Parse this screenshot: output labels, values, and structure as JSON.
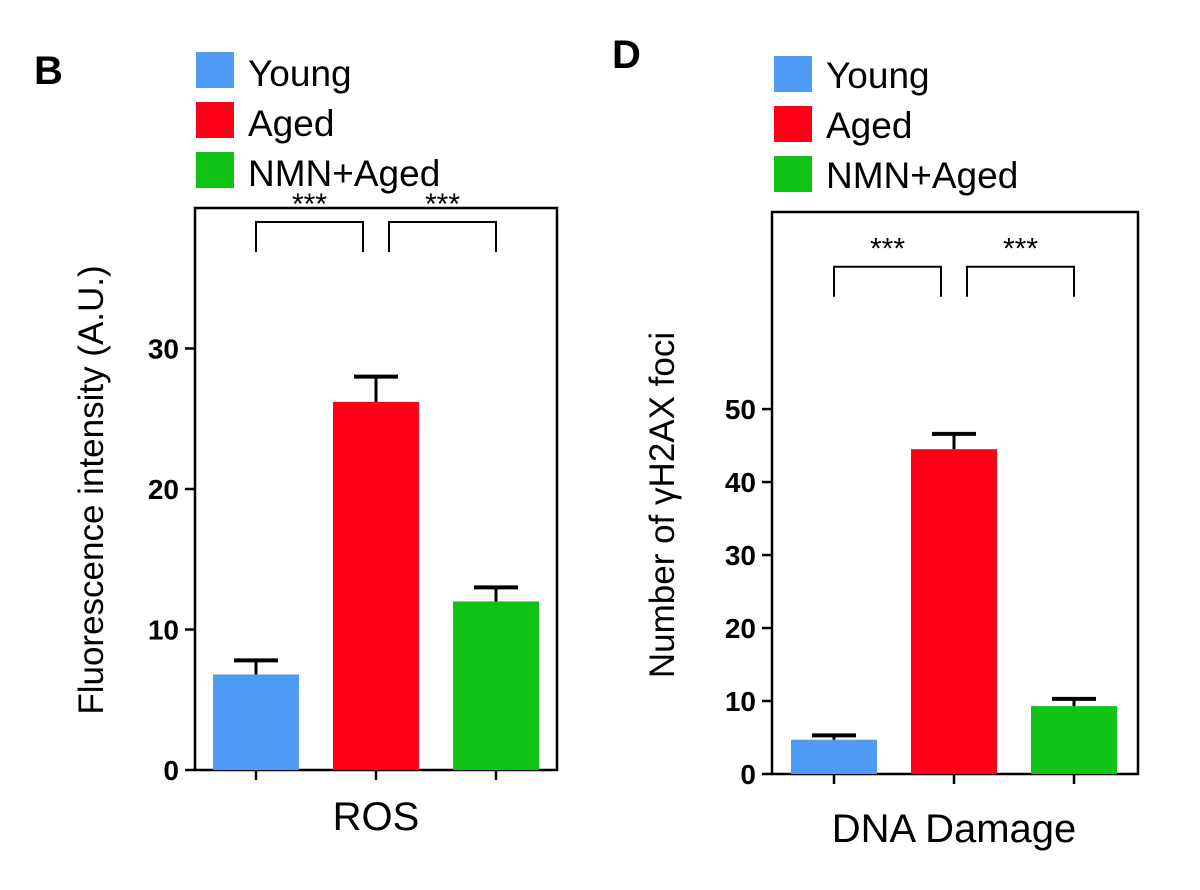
{
  "chart_data": [
    {
      "panel_label": "B",
      "type": "bar",
      "legend": [
        "Young",
        "Aged",
        "NMN+Aged"
      ],
      "legend_placement": "top",
      "categories": [
        "Young",
        "Aged",
        "NMN+Aged"
      ],
      "values": [
        6.8,
        26.2,
        12.0
      ],
      "errors": [
        1.0,
        1.8,
        1.0
      ],
      "colors": [
        "#4f9cf7",
        "#ff0019",
        "#10c416"
      ],
      "xlabel": "ROS",
      "ylabel": "Fluorescence intensity (A.U.)",
      "ylim": [
        0,
        40
      ],
      "yticks": [
        "0",
        "10",
        "20",
        "30"
      ],
      "significance": [
        {
          "from": 0,
          "to": 1,
          "level": 39,
          "label": "***"
        },
        {
          "from": 1,
          "to": 2,
          "level": 39,
          "label": "***"
        }
      ],
      "grid": false
    },
    {
      "panel_label": "D",
      "type": "bar",
      "legend": [
        "Young",
        "Aged",
        "NMN+Aged"
      ],
      "legend_placement": "top",
      "categories": [
        "Young",
        "Aged",
        "NMN+Aged"
      ],
      "values": [
        4.7,
        44.5,
        9.3
      ],
      "errors": [
        0.6,
        2.1,
        1.0
      ],
      "colors": [
        "#4f9cf7",
        "#ff0019",
        "#10c416"
      ],
      "xlabel": "DNA Damage",
      "ylabel": "Number of γH2AX foci",
      "ylim": [
        0,
        77
      ],
      "yticks": [
        "0",
        "10",
        "20",
        "30",
        "40",
        "50"
      ],
      "significance": [
        {
          "from": 0,
          "to": 1,
          "level": 69.5,
          "label": "***"
        },
        {
          "from": 1,
          "to": 2,
          "level": 69.5,
          "label": "***"
        }
      ],
      "grid": false
    }
  ]
}
